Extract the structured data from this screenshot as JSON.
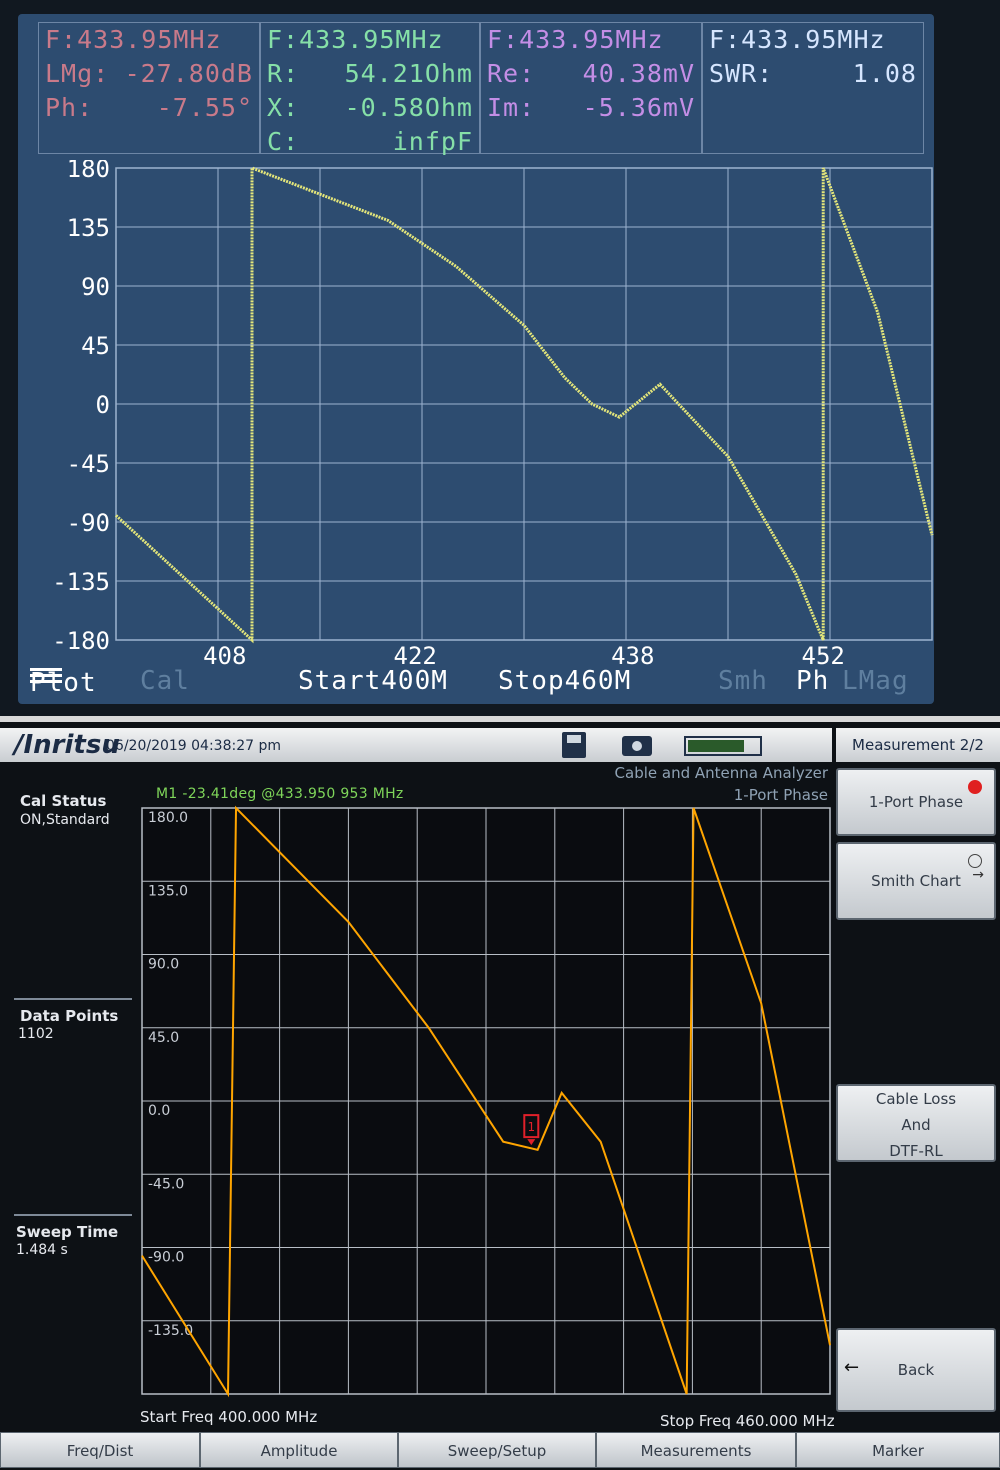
{
  "top_screen": {
    "lmag_panel": {
      "freq": "F:433.95MHz",
      "lmg_label": "LMg:",
      "lmg_value": "-27.80dB",
      "ph_label": "Ph:",
      "ph_value": "-7.55°"
    },
    "rx_panel": {
      "freq": "F:433.95MHz",
      "r_label": "R:",
      "r_value": "54.21Ohm",
      "x_label": "X:",
      "x_value": "-0.58Ohm",
      "c_label": "C:",
      "c_value": "infpF"
    },
    "reim_panel": {
      "freq": "F:433.95MHz",
      "re_label": "Re:",
      "re_value": "40.38mV",
      "im_label": "Im:",
      "im_value": "-5.36mV"
    },
    "swr_panel": {
      "freq": "F:433.95MHz",
      "swr_label": "SWR:",
      "swr_value": "1.08"
    },
    "bottom_bar": {
      "plot": "Plot",
      "cal": "Cal",
      "start": "Start400M",
      "stop": "Stop460M",
      "smh": "Smh",
      "ph": "Ph",
      "lmag": "LMag"
    }
  },
  "bottom_screen": {
    "logo": "/Inritsu",
    "datetime": "06/20/2019 04:38:27 pm",
    "mode_title": "Cable and Antenna Analyzer",
    "mode_sub": "1-Port Phase",
    "cal_status_label": "Cal Status",
    "cal_status_value": "ON,Standard",
    "data_points_label": "Data Points",
    "data_points_value": "1102",
    "sweep_time_label": "Sweep Time",
    "sweep_time_value": "1.484 s",
    "marker_readout": "M1 -23.41deg @433.950 953 MHz",
    "marker_label": "1",
    "start_freq": "Start Freq 400.000 MHz",
    "stop_freq": "Stop Freq 460.000 MHz",
    "battery_level": 0.8,
    "right_title": "Measurement 2/2",
    "softkeys": {
      "phase": "1-Port Phase",
      "smith": "Smith Chart",
      "cable_loss_1": "Cable Loss",
      "cable_loss_2": "And",
      "cable_loss_3": "DTF-RL",
      "back": "Back"
    },
    "menu": [
      "Freq/Dist",
      "Amplitude",
      "Sweep/Setup",
      "Measurements",
      "Marker"
    ]
  },
  "chart_data": [
    {
      "type": "line",
      "title": "",
      "xlabel": "",
      "ylabel": "",
      "xlim": [
        400,
        460
      ],
      "ylim": [
        -180,
        180
      ],
      "x_tick_labels": [
        "408",
        "422",
        "438",
        "452"
      ],
      "x_ticks": [
        408,
        422,
        438,
        452
      ],
      "y_tick_labels": [
        "180",
        "135",
        "90",
        "45",
        "0",
        "-45",
        "-90",
        "-135",
        "-180"
      ],
      "grid": true,
      "color": "#e4e67a",
      "series": [
        {
          "x": [
            400,
            410,
            410,
            420,
            425,
            430,
            433,
            435,
            437,
            440,
            445,
            450,
            452,
            452,
            456,
            460
          ],
          "y": [
            -85,
            -180,
            180,
            140,
            105,
            60,
            20,
            0,
            -10,
            15,
            -40,
            -130,
            -180,
            180,
            70,
            -100
          ]
        }
      ]
    },
    {
      "type": "line",
      "title": "",
      "xlabel": "",
      "ylabel": "",
      "xlim": [
        400,
        460
      ],
      "ylim": [
        -180,
        180
      ],
      "y_tick_labels": [
        "180.0",
        "135.0",
        "90.0",
        "45.0",
        "0.0",
        "-45.0",
        "-90.0",
        "-135.0"
      ],
      "grid": true,
      "color": "#ffa500",
      "series": [
        {
          "x": [
            400,
            407.5,
            408.2,
            418,
            425,
            431.5,
            434.5,
            436.6,
            440,
            447.5,
            448.1,
            454,
            460
          ],
          "y": [
            -95,
            -180,
            180,
            110,
            45,
            -25,
            -30,
            5,
            -25,
            -180,
            180,
            60,
            -150
          ]
        }
      ],
      "marker": {
        "x": 433.95,
        "y": -23.41,
        "label": "1"
      }
    }
  ]
}
